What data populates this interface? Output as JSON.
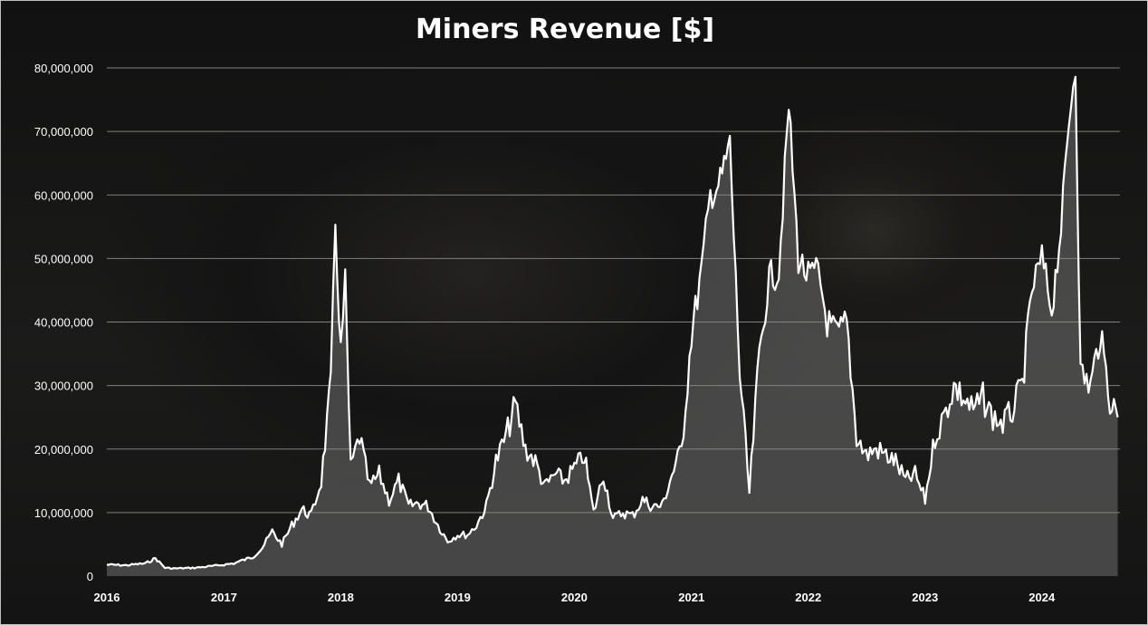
{
  "chart_data": {
    "type": "area",
    "title": "Miners Revenue [$]",
    "xlabel": "",
    "ylabel": "",
    "ylim": [
      0,
      80000000
    ],
    "xlim": [
      "2016-01-01",
      "2024-09-01"
    ],
    "y_ticks": [
      "0",
      "10,000,000",
      "20,000,000",
      "30,000,000",
      "40,000,000",
      "50,000,000",
      "60,000,000",
      "70,000,000",
      "80,000,000"
    ],
    "x_ticks": [
      "2016",
      "2017",
      "2018",
      "2019",
      "2020",
      "2021",
      "2022",
      "2023",
      "2024"
    ],
    "grid": "horizontal",
    "legend": "none",
    "colors": {
      "line": "#ffffff",
      "fill": "#8a8a8a",
      "grid": "#7f7f7f",
      "text": "#ffffff"
    },
    "series": [
      {
        "x": [
          "2016-01",
          "2016-03",
          "2016-05",
          "2016-06",
          "2016-07",
          "2016-08",
          "2016-10",
          "2016-12",
          "2017-02",
          "2017-03",
          "2017-04",
          "2017-05",
          "2017-06",
          "2017-07",
          "2017-08",
          "2017-09",
          "2017-10",
          "2017-11",
          "2017-12-01",
          "2017-12-15",
          "2018-01-01",
          "2018-01-15",
          "2018-02",
          "2018-03",
          "2018-04",
          "2018-05",
          "2018-06",
          "2018-07",
          "2018-08",
          "2018-09",
          "2018-10",
          "2018-11",
          "2018-12",
          "2019-01",
          "2019-02",
          "2019-03",
          "2019-04",
          "2019-05",
          "2019-06",
          "2019-07",
          "2019-08",
          "2019-09",
          "2019-10",
          "2019-11",
          "2019-12",
          "2020-01",
          "2020-02",
          "2020-03",
          "2020-04",
          "2020-05",
          "2020-06",
          "2020-07",
          "2020-08",
          "2020-09",
          "2020-10",
          "2020-11",
          "2020-12",
          "2021-01",
          "2021-02",
          "2021-03",
          "2021-04",
          "2021-05",
          "2021-06",
          "2021-07",
          "2021-08",
          "2021-09",
          "2021-10",
          "2021-11",
          "2021-12",
          "2022-01",
          "2022-02",
          "2022-03",
          "2022-04",
          "2022-05",
          "2022-06",
          "2022-07",
          "2022-08",
          "2022-09",
          "2022-10",
          "2022-11",
          "2022-12",
          "2023-01",
          "2023-02",
          "2023-03",
          "2023-04",
          "2023-05",
          "2023-06",
          "2023-07",
          "2023-08",
          "2023-09",
          "2023-10",
          "2023-11",
          "2023-12",
          "2024-01",
          "2024-02",
          "2024-03",
          "2024-04-01",
          "2024-04-15",
          "2024-05",
          "2024-06",
          "2024-07",
          "2024-08",
          "2024-08-25"
        ],
        "values": [
          1800000,
          1700000,
          2000000,
          2800000,
          1300000,
          1200000,
          1300000,
          1600000,
          2000000,
          2500000,
          3000000,
          4500000,
          7000000,
          5000000,
          8000000,
          10500000,
          9500000,
          15000000,
          30000000,
          55500000,
          35000000,
          46000000,
          17000000,
          22000000,
          14000000,
          16000000,
          12000000,
          15000000,
          11000000,
          11500000,
          11000000,
          8000000,
          5500000,
          6500000,
          6500000,
          8000000,
          11000000,
          18000000,
          22000000,
          27000000,
          20000000,
          18000000,
          14000000,
          16000000,
          15000000,
          17000000,
          19000000,
          10000000,
          16000000,
          9000000,
          10000000,
          9500000,
          12000000,
          11000000,
          11000000,
          16000000,
          20000000,
          38000000,
          48000000,
          60000000,
          62000000,
          68000000,
          32000000,
          13000000,
          35000000,
          47000000,
          48000000,
          74000000,
          50000000,
          47000000,
          48000000,
          40000000,
          38000000,
          40000000,
          22000000,
          19000000,
          20000000,
          19000000,
          18000000,
          15000000,
          16000000,
          12000000,
          22000000,
          25000000,
          30000000,
          28000000,
          26000000,
          28000000,
          25000000,
          24000000,
          26000000,
          30000000,
          45000000,
          50000000,
          42000000,
          55000000,
          75000000,
          80000000,
          32000000,
          30000000,
          38000000,
          28000000,
          25000000
        ]
      }
    ]
  }
}
